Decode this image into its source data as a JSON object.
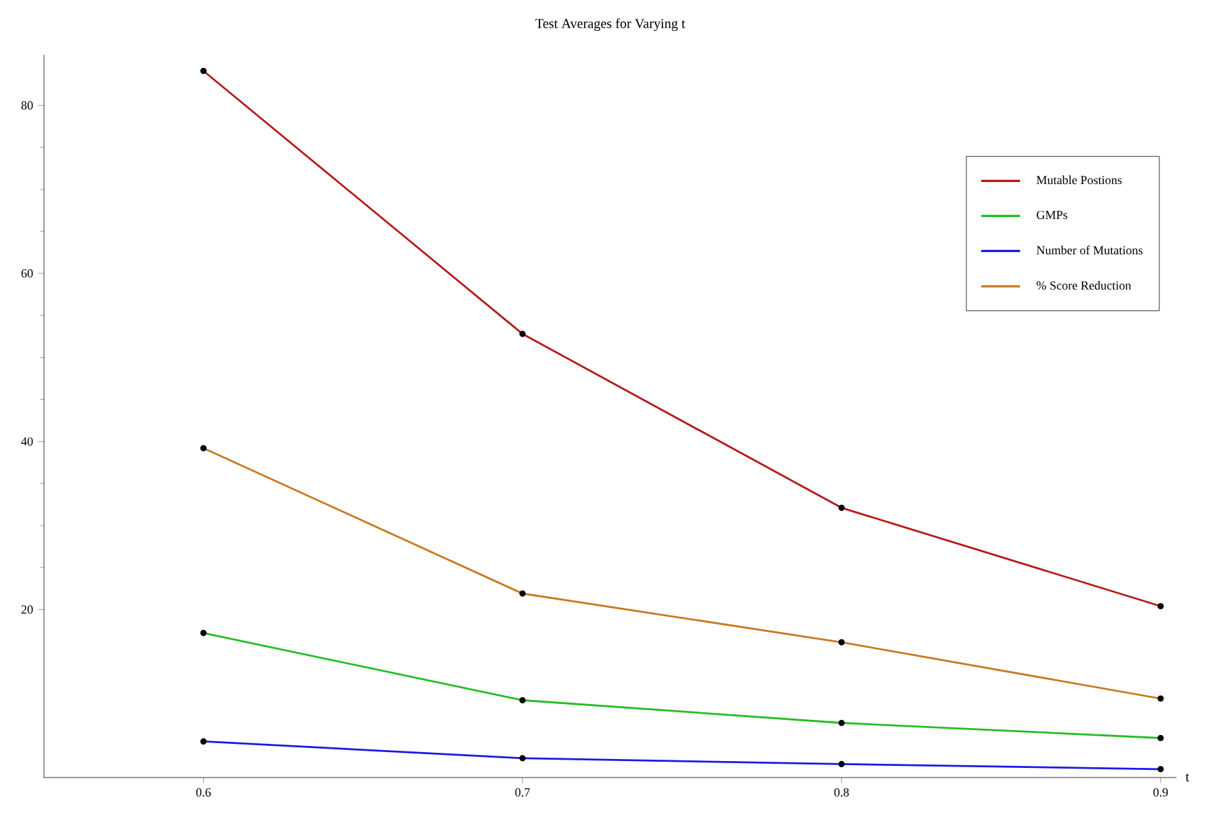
{
  "chart_data": {
    "type": "line",
    "title": "Test Averages for Varying t",
    "xlabel": "t",
    "x": [
      0.6,
      0.7,
      0.8,
      0.9
    ],
    "series": [
      {
        "name": "Mutable Postions",
        "color": "#b5191b",
        "values": [
          84.1,
          52.8,
          32.1,
          20.4
        ]
      },
      {
        "name": "GMPs",
        "color": "#26bd26",
        "values": [
          17.2,
          9.2,
          6.5,
          4.7
        ]
      },
      {
        "name": "Number of Mutations",
        "color": "#1a1ae6",
        "values": [
          4.3,
          2.3,
          1.6,
          1.0
        ]
      },
      {
        "name": "% Score Reduction",
        "color": "#c87a22",
        "values": [
          39.2,
          21.9,
          16.1,
          9.4
        ]
      }
    ],
    "xlim": [
      0.55,
      0.905
    ],
    "ylim": [
      0,
      86
    ],
    "xticks": [
      0.6,
      0.7,
      0.8,
      0.9
    ],
    "yticks": [
      20,
      40,
      60,
      80
    ],
    "grid": false,
    "legend": "top right",
    "marker": "circle",
    "line_style": "solid"
  }
}
